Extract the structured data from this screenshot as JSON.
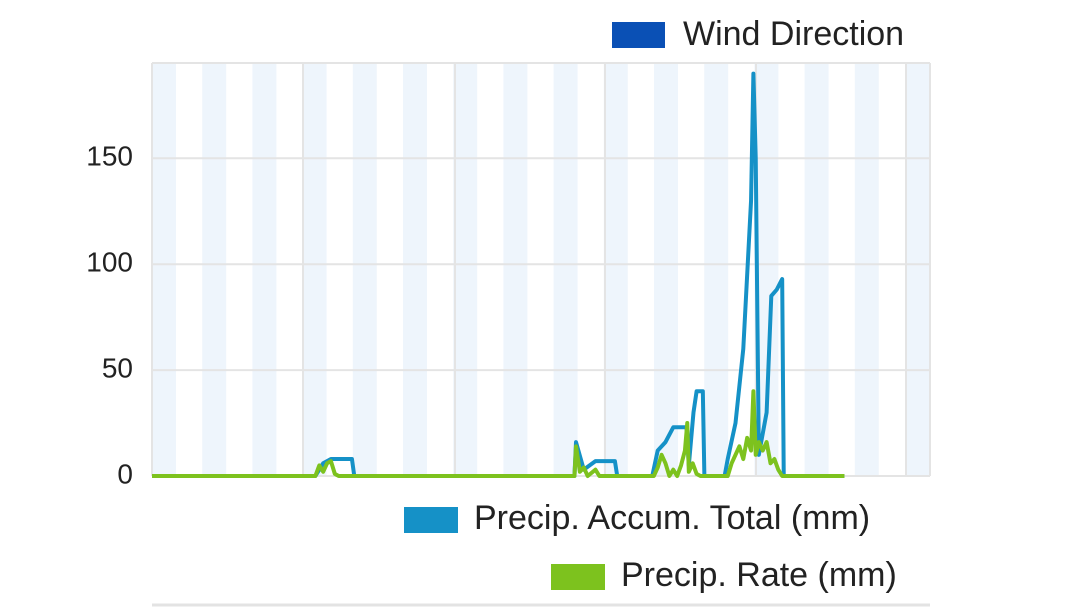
{
  "chart_data": {
    "type": "line",
    "top_legend": {
      "label": "Wind Direction",
      "color": "#0a50b5"
    },
    "xlim": [
      0,
      100
    ],
    "ylim": [
      0,
      195
    ],
    "yticks": [
      0,
      50,
      100,
      150
    ],
    "grid": true,
    "series": [
      {
        "name": "Precip. Accum. Total (mm)",
        "color": "#1591c7",
        "x": [
          0,
          21,
          22,
          23,
          25.7,
          26,
          54.3,
          54.5,
          55.5,
          57,
          59.5,
          59.8,
          64.3,
          65,
          66,
          67,
          68.7,
          69,
          69.6,
          70,
          70.8,
          71,
          73.6,
          74,
          75,
          76,
          77,
          77.3,
          77.6,
          78,
          79,
          79.6,
          80.3,
          81,
          81.2,
          89
        ],
        "values": [
          0,
          0,
          6,
          8,
          8,
          0,
          0,
          16,
          3,
          7,
          7,
          0,
          0,
          12,
          16,
          23,
          23,
          5,
          30,
          40,
          40,
          0,
          0,
          8,
          25,
          60,
          130,
          190,
          150,
          10,
          30,
          85,
          88,
          93,
          0,
          0
        ]
      },
      {
        "name": "Precip. Rate (mm)",
        "color": "#7dc21e",
        "x": [
          0,
          21,
          21.5,
          22,
          22.5,
          23,
          23.5,
          24,
          54.3,
          54.5,
          55,
          55.5,
          56,
          57,
          57.5,
          64.5,
          65,
          65.5,
          66,
          66.5,
          67,
          67.5,
          68,
          68.5,
          68.8,
          69,
          69.5,
          70,
          70.5,
          74,
          74.5,
          75,
          75.5,
          76,
          76.5,
          77,
          77.3,
          77.6,
          78,
          78.5,
          79,
          79.5,
          80,
          80.5,
          81,
          89
        ],
        "values": [
          0,
          0,
          5,
          2,
          6,
          7,
          1,
          0,
          0,
          14,
          2,
          4,
          0,
          3,
          0,
          0,
          4,
          10,
          6,
          0,
          3,
          0,
          5,
          12,
          25,
          2,
          6,
          1,
          0,
          0,
          6,
          10,
          14,
          8,
          18,
          12,
          40,
          10,
          16,
          12,
          16,
          6,
          8,
          3,
          0,
          0
        ]
      }
    ]
  }
}
